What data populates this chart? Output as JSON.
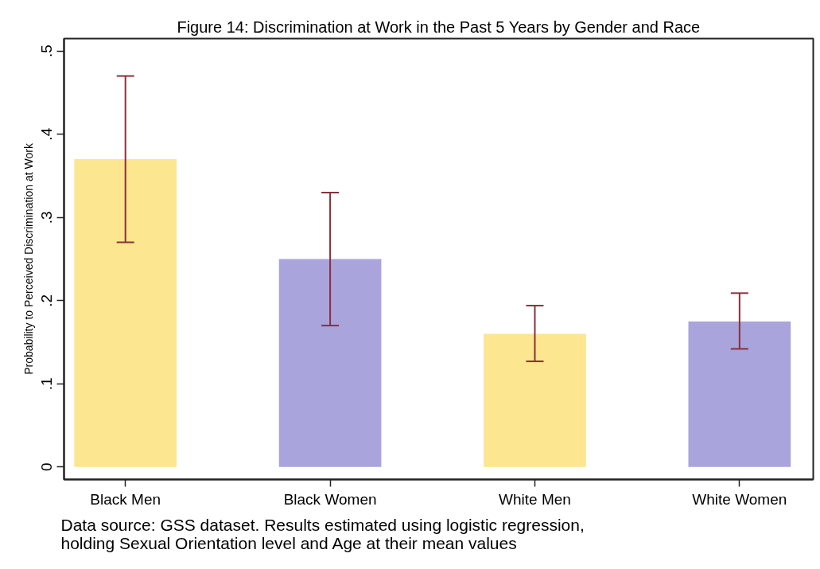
{
  "chart_data": {
    "type": "bar",
    "title": "Figure 14: Discrimination at Work in the Past 5 Years by Gender and Race",
    "ylabel": "Probability to Perceived Discrimination at Work",
    "annotations": [
      "Data source: GSS dataset. Results estimated using logistic regression, holding Sexual Orientation level and Age at their mean values"
    ],
    "categories": [
      "Black Men",
      "Black Women",
      "White Men",
      "White Women"
    ],
    "values": [
      0.37,
      0.25,
      0.16,
      0.175
    ],
    "colors": [
      "#fce68f",
      "#a9a4dc",
      "#fce68f",
      "#a9a4dc"
    ],
    "errors": [
      [
        0.27,
        0.47
      ],
      [
        0.17,
        0.33
      ],
      [
        0.127,
        0.194
      ],
      [
        0.142,
        0.209
      ]
    ],
    "ylim": [
      -0.015,
      0.515
    ],
    "yticks": [
      0,
      {
        "value": 0.1,
        "label": ".1"
      },
      {
        "value": 0.2,
        "label": ".2"
      },
      {
        "value": 0.3,
        "label": ".3"
      },
      {
        "value": 0.4,
        "label": ".4"
      },
      {
        "value": 0.5,
        "label": ".5"
      }
    ]
  }
}
